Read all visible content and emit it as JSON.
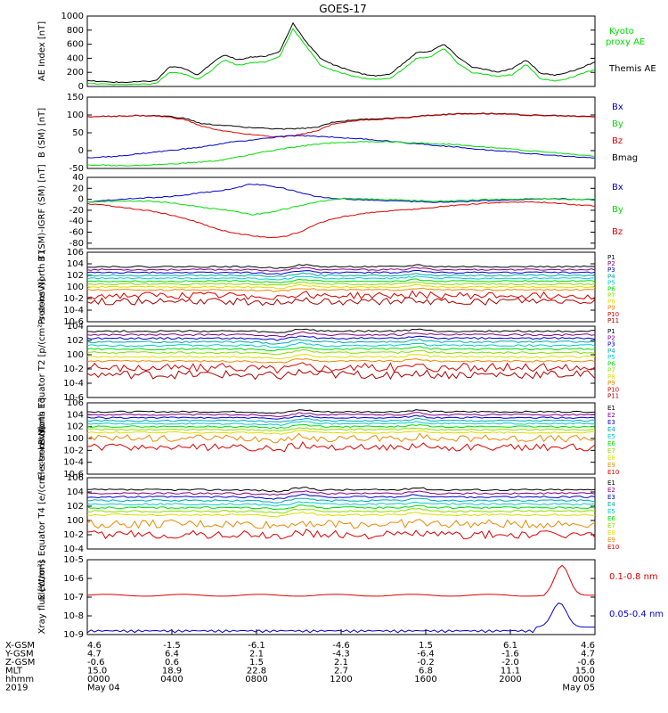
{
  "title": "GOES-17",
  "colors": {
    "black": "#000000",
    "green": "#00dd00",
    "red": "#dd0000",
    "blue": "#0000cc",
    "cyan": "#00cccc",
    "yellow": "#dddd00",
    "orange": "#ee8800",
    "purple": "#880088",
    "brown": "#aa0000",
    "teal": "#00aaaa",
    "lime": "#88dd00"
  },
  "chart_data": [
    {
      "type": "line",
      "ylabel": "AE Index [nT]",
      "ylim": [
        0,
        1000
      ],
      "ticks": [
        "0",
        "200",
        "400",
        "600",
        "800",
        "1000"
      ],
      "legend": [
        {
          "name": "Kyoto proxy AE",
          "color": "green"
        },
        {
          "name": "Themis AE",
          "color": "black"
        }
      ],
      "series": [
        {
          "name": "Themis AE",
          "color": "black",
          "y": [
            80,
            70,
            60,
            60,
            70,
            80,
            280,
            260,
            160,
            320,
            450,
            380,
            420,
            430,
            490,
            900,
            620,
            400,
            300,
            240,
            180,
            150,
            170,
            320,
            480,
            500,
            600,
            420,
            280,
            240,
            200,
            260,
            380,
            190,
            160,
            200,
            260,
            350
          ]
        },
        {
          "name": "Kyoto proxy AE",
          "color": "green",
          "y": [
            40,
            35,
            30,
            30,
            30,
            40,
            200,
            180,
            100,
            220,
            380,
            300,
            340,
            350,
            420,
            820,
            560,
            300,
            220,
            170,
            120,
            100,
            110,
            240,
            400,
            420,
            540,
            330,
            200,
            170,
            140,
            170,
            320,
            110,
            80,
            110,
            180,
            240
          ]
        }
      ]
    },
    {
      "type": "line",
      "ylabel": "B (SM) [nT]",
      "ylim": [
        -50,
        150
      ],
      "ticks": [
        "-50",
        "0",
        "50",
        "100",
        "150"
      ],
      "legend": [
        {
          "name": "Bx",
          "color": "blue"
        },
        {
          "name": "By",
          "color": "green"
        },
        {
          "name": "Bz",
          "color": "red"
        },
        {
          "name": "Bmag",
          "color": "black"
        }
      ],
      "series": [
        {
          "name": "Bmag",
          "color": "black",
          "y": [
            95,
            96,
            97,
            98,
            98,
            96,
            90,
            75,
            72,
            68,
            65,
            62,
            60,
            62,
            65,
            80,
            85,
            88,
            90,
            92,
            96,
            100,
            102,
            104,
            105,
            104,
            102,
            100,
            99,
            98,
            97,
            96
          ]
        },
        {
          "name": "Bz",
          "color": "red",
          "y": [
            95,
            96,
            97,
            98,
            97,
            94,
            86,
            68,
            58,
            50,
            46,
            40,
            38,
            45,
            55,
            75,
            82,
            86,
            88,
            91,
            95,
            99,
            101,
            103,
            104,
            103,
            101,
            99,
            98,
            97,
            96,
            95
          ]
        },
        {
          "name": "Bx",
          "color": "blue",
          "y": [
            -20,
            -18,
            -15,
            -10,
            -5,
            0,
            5,
            10,
            18,
            25,
            30,
            35,
            40,
            42,
            40,
            38,
            35,
            32,
            28,
            24,
            20,
            16,
            12,
            8,
            4,
            0,
            -4,
            -8,
            -12,
            -15,
            -18,
            -20
          ]
        },
        {
          "name": "By",
          "color": "green",
          "y": [
            -40,
            -41,
            -42,
            -42,
            -40,
            -38,
            -35,
            -32,
            -28,
            -20,
            -10,
            -2,
            5,
            12,
            18,
            22,
            24,
            25,
            25,
            24,
            22,
            20,
            18,
            15,
            12,
            8,
            4,
            0,
            -4,
            -8,
            -12,
            -15
          ]
        }
      ]
    },
    {
      "type": "line",
      "ylabel": "B (SM)-IGRF (SM) [nT]",
      "ylim": [
        -90,
        40
      ],
      "ticks": [
        "-80",
        "-60",
        "-40",
        "-20",
        "0",
        "20",
        "40"
      ],
      "legend": [
        {
          "name": "Bx",
          "color": "blue"
        },
        {
          "name": "By",
          "color": "green"
        },
        {
          "name": "Bz",
          "color": "red"
        }
      ],
      "series": [
        {
          "name": "Bx",
          "color": "blue",
          "y": [
            -5,
            -2,
            0,
            2,
            3,
            5,
            8,
            12,
            15,
            20,
            28,
            25,
            20,
            12,
            5,
            2,
            0,
            -1,
            -2,
            -3,
            -4,
            -5,
            -5,
            -4,
            -3,
            -2,
            -1,
            0,
            1,
            1,
            0,
            -1
          ]
        },
        {
          "name": "By",
          "color": "green",
          "y": [
            -5,
            -4,
            -3,
            -3,
            -4,
            -6,
            -10,
            -15,
            -18,
            -22,
            -28,
            -25,
            -18,
            -12,
            -5,
            0,
            2,
            1,
            0,
            -1,
            -2,
            -3,
            -3,
            -2,
            -1,
            0,
            0,
            1,
            1,
            0,
            0,
            0
          ]
        },
        {
          "name": "Bz",
          "color": "red",
          "y": [
            -8,
            -10,
            -14,
            -18,
            -22,
            -28,
            -35,
            -45,
            -55,
            -62,
            -66,
            -70,
            -68,
            -60,
            -45,
            -35,
            -30,
            -25,
            -22,
            -20,
            -18,
            -15,
            -12,
            -10,
            -8,
            -6,
            -5,
            -5,
            -6,
            -8,
            -10,
            -12
          ]
        }
      ]
    },
    {
      "type": "line",
      "ylabel": "Protons North T1",
      "ylim": [
        -6,
        6
      ],
      "log": true,
      "ticks": [
        "10^-6",
        "10^-4",
        "10^-2",
        "10^0",
        "10^2",
        "10^4",
        "10^6"
      ],
      "legend": [
        "P1",
        "P2",
        "P3",
        "P4",
        "P5",
        "P6",
        "P7",
        "P8",
        "P9",
        "P10",
        "P11"
      ],
      "series_levels": [
        3.5,
        3.0,
        2.5,
        2.0,
        1.5,
        1.0,
        0.5,
        0.0,
        -0.5,
        -1.5,
        -2.5
      ]
    },
    {
      "type": "line",
      "ylabel": "Protons Equator T2 [p/(cm²-s-sr-keV)]",
      "ylim": [
        -6,
        4
      ],
      "log": true,
      "ticks": [
        "10^-6",
        "10^-4",
        "10^-2",
        "10^0",
        "10^2",
        "10^4"
      ],
      "legend": [
        "P1",
        "P2",
        "P3",
        "P4",
        "P5",
        "P6",
        "P7",
        "P8",
        "P9",
        "P10",
        "P11"
      ],
      "series_levels": [
        3.3,
        2.8,
        2.3,
        1.8,
        1.3,
        0.8,
        0.3,
        -0.3,
        -0.9,
        -1.8,
        -2.8
      ]
    },
    {
      "type": "line",
      "ylabel": "Electrons North T3",
      "ylim": [
        -6,
        6
      ],
      "log": true,
      "ticks": [
        "10^-6",
        "10^-4",
        "10^-2",
        "10^0",
        "10^2",
        "10^4",
        "10^6"
      ],
      "legend": [
        "E1",
        "E2",
        "E3",
        "E4",
        "E5",
        "E6",
        "E7",
        "E8",
        "E9",
        "E10"
      ],
      "series_levels": [
        4.5,
        4.0,
        3.5,
        3.0,
        2.5,
        2.0,
        1.5,
        1.0,
        0.0,
        -1.5
      ]
    },
    {
      "type": "line",
      "ylabel": "Electrons Equator T4 [e/(cm²-s-sr-keV)]",
      "ylim": [
        -4,
        6
      ],
      "log": true,
      "ticks": [
        "10^-4",
        "10^-2",
        "10^0",
        "10^2",
        "10^4",
        "10^6"
      ],
      "legend": [
        "E1",
        "E2",
        "E3",
        "E4",
        "E5",
        "E6",
        "E7",
        "E8",
        "E9",
        "E10"
      ],
      "series_levels": [
        4.3,
        3.8,
        3.3,
        2.8,
        2.3,
        1.8,
        1.3,
        0.8,
        -0.5,
        -2.0
      ]
    },
    {
      "type": "line",
      "ylabel": "Xray flux [W/m²]",
      "ylim": [
        -9,
        -5
      ],
      "log": true,
      "ticks": [
        "10^-9",
        "10^-8",
        "10^-7",
        "10^-6",
        "10^-5"
      ],
      "legend": [
        {
          "name": "0.1-0.8 nm",
          "color": "red"
        },
        {
          "name": "0.05-0.4 nm",
          "color": "blue"
        }
      ]
    }
  ],
  "axis": {
    "rows": [
      {
        "label": "X-GSM",
        "values": [
          "4.6",
          "-1.5",
          "-6.1",
          "-4.6",
          "1.5",
          "6.1",
          "4.6"
        ]
      },
      {
        "label": "Y-GSM",
        "values": [
          "4.7",
          "6.4",
          "2.1",
          "-4.3",
          "-6.4",
          "-1.6",
          "4.7"
        ]
      },
      {
        "label": "Z-GSM",
        "values": [
          "-0.6",
          "0.6",
          "1.5",
          "2.1",
          "-0.2",
          "-2.0",
          "-0.6"
        ]
      },
      {
        "label": "MLT",
        "values": [
          "15.0",
          "18.9",
          "22.8",
          "2.7",
          "6.8",
          "11.1",
          "15.0"
        ]
      },
      {
        "label": "hhmm",
        "values": [
          "0000",
          "0400",
          "0800",
          "1200",
          "1600",
          "2000",
          "0000"
        ]
      },
      {
        "label": "2019",
        "values": [
          "May 04",
          "",
          "",
          "",
          "",
          "",
          "May 05"
        ]
      }
    ]
  }
}
